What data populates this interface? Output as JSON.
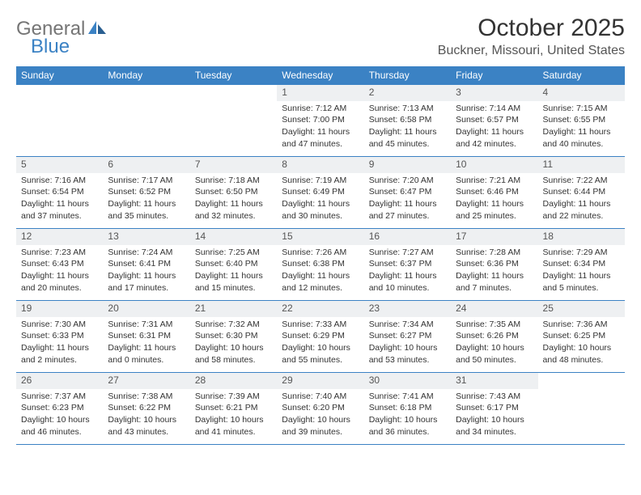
{
  "logo": {
    "text1": "General",
    "text2": "Blue"
  },
  "title": "October 2025",
  "location": "Buckner, Missouri, United States",
  "colors": {
    "header_bg": "#3b82c4",
    "daynum_bg": "#eef0f2",
    "text": "#333333",
    "logo_gray": "#757575",
    "logo_blue": "#3b82c4"
  },
  "weekdays": [
    "Sunday",
    "Monday",
    "Tuesday",
    "Wednesday",
    "Thursday",
    "Friday",
    "Saturday"
  ],
  "weeks": [
    [
      {
        "n": "",
        "sr": "",
        "ss": "",
        "dl1": "",
        "dl2": ""
      },
      {
        "n": "",
        "sr": "",
        "ss": "",
        "dl1": "",
        "dl2": ""
      },
      {
        "n": "",
        "sr": "",
        "ss": "",
        "dl1": "",
        "dl2": ""
      },
      {
        "n": "1",
        "sr": "Sunrise: 7:12 AM",
        "ss": "Sunset: 7:00 PM",
        "dl1": "Daylight: 11 hours",
        "dl2": "and 47 minutes."
      },
      {
        "n": "2",
        "sr": "Sunrise: 7:13 AM",
        "ss": "Sunset: 6:58 PM",
        "dl1": "Daylight: 11 hours",
        "dl2": "and 45 minutes."
      },
      {
        "n": "3",
        "sr": "Sunrise: 7:14 AM",
        "ss": "Sunset: 6:57 PM",
        "dl1": "Daylight: 11 hours",
        "dl2": "and 42 minutes."
      },
      {
        "n": "4",
        "sr": "Sunrise: 7:15 AM",
        "ss": "Sunset: 6:55 PM",
        "dl1": "Daylight: 11 hours",
        "dl2": "and 40 minutes."
      }
    ],
    [
      {
        "n": "5",
        "sr": "Sunrise: 7:16 AM",
        "ss": "Sunset: 6:54 PM",
        "dl1": "Daylight: 11 hours",
        "dl2": "and 37 minutes."
      },
      {
        "n": "6",
        "sr": "Sunrise: 7:17 AM",
        "ss": "Sunset: 6:52 PM",
        "dl1": "Daylight: 11 hours",
        "dl2": "and 35 minutes."
      },
      {
        "n": "7",
        "sr": "Sunrise: 7:18 AM",
        "ss": "Sunset: 6:50 PM",
        "dl1": "Daylight: 11 hours",
        "dl2": "and 32 minutes."
      },
      {
        "n": "8",
        "sr": "Sunrise: 7:19 AM",
        "ss": "Sunset: 6:49 PM",
        "dl1": "Daylight: 11 hours",
        "dl2": "and 30 minutes."
      },
      {
        "n": "9",
        "sr": "Sunrise: 7:20 AM",
        "ss": "Sunset: 6:47 PM",
        "dl1": "Daylight: 11 hours",
        "dl2": "and 27 minutes."
      },
      {
        "n": "10",
        "sr": "Sunrise: 7:21 AM",
        "ss": "Sunset: 6:46 PM",
        "dl1": "Daylight: 11 hours",
        "dl2": "and 25 minutes."
      },
      {
        "n": "11",
        "sr": "Sunrise: 7:22 AM",
        "ss": "Sunset: 6:44 PM",
        "dl1": "Daylight: 11 hours",
        "dl2": "and 22 minutes."
      }
    ],
    [
      {
        "n": "12",
        "sr": "Sunrise: 7:23 AM",
        "ss": "Sunset: 6:43 PM",
        "dl1": "Daylight: 11 hours",
        "dl2": "and 20 minutes."
      },
      {
        "n": "13",
        "sr": "Sunrise: 7:24 AM",
        "ss": "Sunset: 6:41 PM",
        "dl1": "Daylight: 11 hours",
        "dl2": "and 17 minutes."
      },
      {
        "n": "14",
        "sr": "Sunrise: 7:25 AM",
        "ss": "Sunset: 6:40 PM",
        "dl1": "Daylight: 11 hours",
        "dl2": "and 15 minutes."
      },
      {
        "n": "15",
        "sr": "Sunrise: 7:26 AM",
        "ss": "Sunset: 6:38 PM",
        "dl1": "Daylight: 11 hours",
        "dl2": "and 12 minutes."
      },
      {
        "n": "16",
        "sr": "Sunrise: 7:27 AM",
        "ss": "Sunset: 6:37 PM",
        "dl1": "Daylight: 11 hours",
        "dl2": "and 10 minutes."
      },
      {
        "n": "17",
        "sr": "Sunrise: 7:28 AM",
        "ss": "Sunset: 6:36 PM",
        "dl1": "Daylight: 11 hours",
        "dl2": "and 7 minutes."
      },
      {
        "n": "18",
        "sr": "Sunrise: 7:29 AM",
        "ss": "Sunset: 6:34 PM",
        "dl1": "Daylight: 11 hours",
        "dl2": "and 5 minutes."
      }
    ],
    [
      {
        "n": "19",
        "sr": "Sunrise: 7:30 AM",
        "ss": "Sunset: 6:33 PM",
        "dl1": "Daylight: 11 hours",
        "dl2": "and 2 minutes."
      },
      {
        "n": "20",
        "sr": "Sunrise: 7:31 AM",
        "ss": "Sunset: 6:31 PM",
        "dl1": "Daylight: 11 hours",
        "dl2": "and 0 minutes."
      },
      {
        "n": "21",
        "sr": "Sunrise: 7:32 AM",
        "ss": "Sunset: 6:30 PM",
        "dl1": "Daylight: 10 hours",
        "dl2": "and 58 minutes."
      },
      {
        "n": "22",
        "sr": "Sunrise: 7:33 AM",
        "ss": "Sunset: 6:29 PM",
        "dl1": "Daylight: 10 hours",
        "dl2": "and 55 minutes."
      },
      {
        "n": "23",
        "sr": "Sunrise: 7:34 AM",
        "ss": "Sunset: 6:27 PM",
        "dl1": "Daylight: 10 hours",
        "dl2": "and 53 minutes."
      },
      {
        "n": "24",
        "sr": "Sunrise: 7:35 AM",
        "ss": "Sunset: 6:26 PM",
        "dl1": "Daylight: 10 hours",
        "dl2": "and 50 minutes."
      },
      {
        "n": "25",
        "sr": "Sunrise: 7:36 AM",
        "ss": "Sunset: 6:25 PM",
        "dl1": "Daylight: 10 hours",
        "dl2": "and 48 minutes."
      }
    ],
    [
      {
        "n": "26",
        "sr": "Sunrise: 7:37 AM",
        "ss": "Sunset: 6:23 PM",
        "dl1": "Daylight: 10 hours",
        "dl2": "and 46 minutes."
      },
      {
        "n": "27",
        "sr": "Sunrise: 7:38 AM",
        "ss": "Sunset: 6:22 PM",
        "dl1": "Daylight: 10 hours",
        "dl2": "and 43 minutes."
      },
      {
        "n": "28",
        "sr": "Sunrise: 7:39 AM",
        "ss": "Sunset: 6:21 PM",
        "dl1": "Daylight: 10 hours",
        "dl2": "and 41 minutes."
      },
      {
        "n": "29",
        "sr": "Sunrise: 7:40 AM",
        "ss": "Sunset: 6:20 PM",
        "dl1": "Daylight: 10 hours",
        "dl2": "and 39 minutes."
      },
      {
        "n": "30",
        "sr": "Sunrise: 7:41 AM",
        "ss": "Sunset: 6:18 PM",
        "dl1": "Daylight: 10 hours",
        "dl2": "and 36 minutes."
      },
      {
        "n": "31",
        "sr": "Sunrise: 7:43 AM",
        "ss": "Sunset: 6:17 PM",
        "dl1": "Daylight: 10 hours",
        "dl2": "and 34 minutes."
      },
      {
        "n": "",
        "sr": "",
        "ss": "",
        "dl1": "",
        "dl2": ""
      }
    ]
  ]
}
